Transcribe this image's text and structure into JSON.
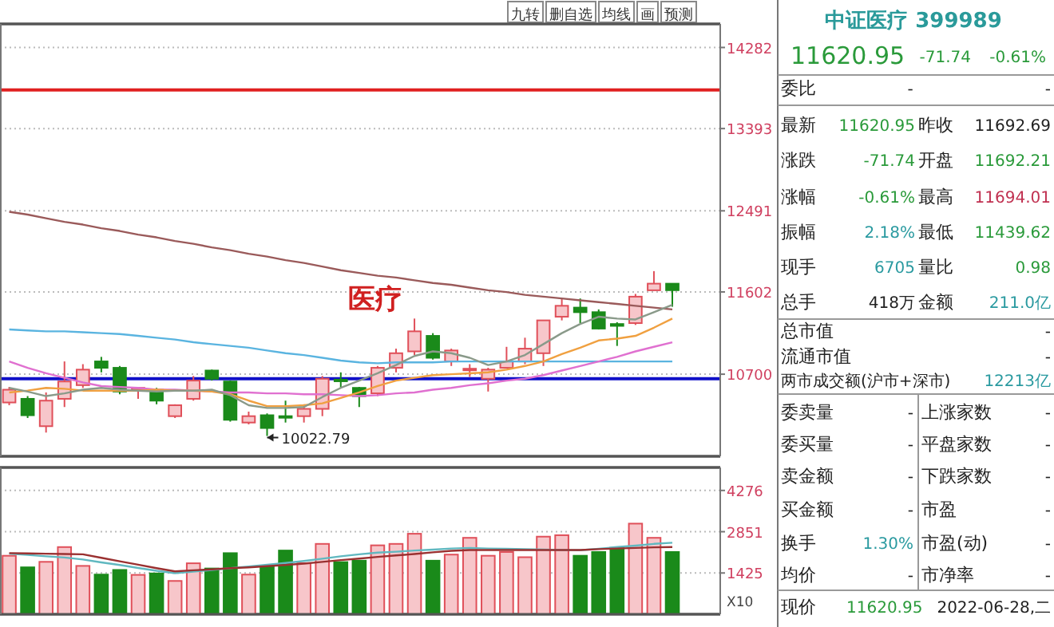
{
  "chart_data": [
    {
      "type": "candlestick",
      "categories": [
        null,
        null,
        null,
        null,
        null,
        null,
        null,
        null,
        null,
        null,
        null,
        null,
        null,
        null,
        null,
        null,
        null,
        null,
        null,
        null,
        null,
        null,
        null,
        null,
        null,
        null,
        null,
        null,
        null,
        null,
        null,
        null,
        null,
        null,
        null,
        null,
        null
      ],
      "ohlc": [
        [
          10390,
          10560,
          10360,
          10530
        ],
        [
          10430,
          10460,
          10220,
          10250
        ],
        [
          10130,
          10500,
          10060,
          10410
        ],
        [
          10430,
          10840,
          10340,
          10620
        ],
        [
          10580,
          10810,
          10550,
          10750
        ],
        [
          10840,
          10890,
          10720,
          10770
        ],
        [
          10770,
          10790,
          10480,
          10510
        ],
        [
          10530,
          10550,
          10430,
          10550
        ],
        [
          10530,
          10550,
          10370,
          10410
        ],
        [
          10240,
          10370,
          10220,
          10360
        ],
        [
          10430,
          10680,
          10410,
          10630
        ],
        [
          10740,
          10750,
          10630,
          10650
        ],
        [
          10620,
          10630,
          10180,
          10200
        ],
        [
          10170,
          10290,
          10150,
          10240
        ],
        [
          10250,
          10270,
          10022.79,
          10110
        ],
        [
          10240,
          10410,
          10170,
          10230
        ],
        [
          10240,
          10370,
          10170,
          10320
        ],
        [
          10320,
          10680,
          10240,
          10650
        ],
        [
          10640,
          10720,
          10550,
          10630
        ],
        [
          10550,
          10560,
          10340,
          10460
        ],
        [
          10490,
          10790,
          10460,
          10770
        ],
        [
          10770,
          10980,
          10720,
          10930
        ],
        [
          10950,
          11310,
          10910,
          11170
        ],
        [
          11120,
          11150,
          10860,
          10880
        ],
        [
          10840,
          10980,
          10790,
          10960
        ],
        [
          10750,
          10810,
          10670,
          10760
        ],
        [
          10650,
          10770,
          10510,
          10750
        ],
        [
          10770,
          11000,
          10770,
          10840
        ],
        [
          10840,
          11100,
          10810,
          10980
        ],
        [
          10930,
          11290,
          10790,
          11290
        ],
        [
          11330,
          11530,
          11290,
          11450
        ],
        [
          11430,
          11530,
          11260,
          11380
        ],
        [
          11380,
          11410,
          11190,
          11200
        ],
        [
          11250,
          11270,
          11010,
          11230
        ],
        [
          11260,
          11580,
          11240,
          11550
        ],
        [
          11620,
          11830,
          11620,
          11692.69
        ],
        [
          11692.21,
          11694.01,
          11439.62,
          11620.95
        ]
      ],
      "ylim": [
        9800,
        14540
      ],
      "yticks": [
        10700,
        11602,
        12491,
        13393,
        14282
      ],
      "tick_labels": "y",
      "grid": "y",
      "ref_lines": [
        {
          "axis": "y",
          "value": 13816,
          "color": "#e02020"
        },
        {
          "axis": "y",
          "value": 10650,
          "color": "#1010c8"
        }
      ],
      "annotations": [
        "医疗",
        "10022.79",
        "九转",
        "删自选",
        "均线",
        "画",
        "预测"
      ]
    },
    {
      "type": "line",
      "categories": [
        null,
        null,
        null,
        null,
        null,
        null,
        null,
        null,
        null,
        null,
        null,
        null,
        null,
        null,
        null,
        null,
        null,
        null,
        null,
        null,
        null,
        null,
        null,
        null,
        null,
        null,
        null,
        null,
        null,
        null,
        null,
        null,
        null,
        null,
        null,
        null,
        null
      ],
      "series": [
        {
          "color": "#9a5a5a",
          "values": [
            12480,
            12450,
            12410,
            12370,
            12340,
            12300,
            12270,
            12230,
            12200,
            12160,
            12130,
            12090,
            12060,
            12020,
            11990,
            11950,
            11920,
            11880,
            11840,
            11810,
            11780,
            11760,
            11730,
            11700,
            11680,
            11650,
            11620,
            11600,
            11570,
            11550,
            11530,
            11510,
            11490,
            11470,
            11450,
            11430,
            11410
          ]
        },
        {
          "color": "#5ab4e0",
          "values": [
            11190,
            11180,
            11170,
            11170,
            11160,
            11150,
            11140,
            11120,
            11100,
            11080,
            11050,
            11030,
            11010,
            10990,
            10960,
            10930,
            10910,
            10880,
            10850,
            10830,
            10820,
            10830,
            10830,
            10830,
            10840,
            10840,
            10840,
            10840,
            10840,
            10840,
            10840,
            10840,
            10840,
            10840,
            10840,
            10840,
            10840
          ]
        },
        {
          "color": "#e070d0",
          "values": [
            10840,
            10770,
            10710,
            10660,
            10610,
            10570,
            10560,
            10550,
            10530,
            10530,
            10520,
            10510,
            10500,
            10500,
            10490,
            10490,
            10480,
            10480,
            10470,
            10460,
            10470,
            10490,
            10500,
            10530,
            10550,
            10580,
            10600,
            10630,
            10650,
            10690,
            10740,
            10790,
            10840,
            10890,
            10950,
            11000,
            11050
          ]
        },
        {
          "color": "#f0a040",
          "values": [
            10500,
            10520,
            10550,
            10540,
            10520,
            10520,
            10520,
            10520,
            10530,
            10520,
            10520,
            10510,
            10480,
            10410,
            10350,
            10350,
            10360,
            10380,
            10440,
            10500,
            10570,
            10630,
            10660,
            10690,
            10700,
            10710,
            10720,
            10750,
            10790,
            10840,
            10920,
            10990,
            11070,
            11090,
            11120,
            11210,
            11310
          ]
        },
        {
          "color": "#8a9a8a",
          "values": [
            10550,
            10510,
            10460,
            10490,
            10530,
            10550,
            10530,
            10520,
            10510,
            10520,
            10520,
            10530,
            10470,
            10360,
            10330,
            10330,
            10340,
            10450,
            10550,
            10630,
            10710,
            10800,
            10900,
            10950,
            10930,
            10880,
            10800,
            10840,
            10910,
            11030,
            11150,
            11250,
            11330,
            11310,
            11300,
            11380,
            11460
          ]
        }
      ],
      "ylim": [
        9800,
        14540
      ],
      "tick_labels": false
    },
    {
      "type": "bar",
      "categories": [
        null,
        null,
        null,
        null,
        null,
        null,
        null,
        null,
        null,
        null,
        null,
        null,
        null,
        null,
        null,
        null,
        null,
        null,
        null,
        null,
        null,
        null,
        null,
        null,
        null,
        null,
        null,
        null,
        null,
        null,
        null,
        null,
        null,
        null,
        null,
        null,
        null
      ],
      "values": [
        2020,
        1620,
        1810,
        2320,
        1670,
        1370,
        1530,
        1360,
        1410,
        1150,
        1760,
        1580,
        2110,
        1370,
        1670,
        2200,
        1760,
        2430,
        1800,
        1850,
        2380,
        2430,
        2780,
        1850,
        2060,
        2640,
        2020,
        2150,
        1970,
        2680,
        2730,
        2020,
        2150,
        2290,
        3130,
        2640,
        2150
      ],
      "colors": [
        "#e0505a",
        "#1a8a1a",
        "#e0505a",
        "#e0505a",
        "#e0505a",
        "#1a8a1a",
        "#1a8a1a",
        "#e0505a",
        "#1a8a1a",
        "#e0505a",
        "#e0505a",
        "#1a8a1a",
        "#1a8a1a",
        "#e0505a",
        "#1a8a1a",
        "#1a8a1a",
        "#e0505a",
        "#e0505a",
        "#1a8a1a",
        "#1a8a1a",
        "#e0505a",
        "#e0505a",
        "#e0505a",
        "#1a8a1a",
        "#e0505a",
        "#e0505a",
        "#e0505a",
        "#e0505a",
        "#e0505a",
        "#e0505a",
        "#e0505a",
        "#1a8a1a",
        "#1a8a1a",
        "#1a8a1a",
        "#e0505a",
        "#e0505a",
        "#1a8a1a"
      ],
      "ylim": [
        0,
        5070
      ],
      "yticks": [
        1425,
        2851,
        4276
      ],
      "tick_labels": "y",
      "grid": "y",
      "annotations": [
        "X10"
      ]
    },
    {
      "type": "line",
      "categories": [
        null,
        null,
        null,
        null,
        null,
        null,
        null,
        null,
        null,
        null,
        null,
        null,
        null,
        null,
        null,
        null,
        null,
        null,
        null,
        null,
        null,
        null,
        null,
        null,
        null,
        null,
        null,
        null,
        null,
        null,
        null,
        null,
        null,
        null,
        null,
        null,
        null
      ],
      "series": [
        {
          "color": "#60b8c0",
          "values": [
            2090,
            2050,
            2000,
            1960,
            1890,
            1790,
            1700,
            1600,
            1500,
            1420,
            1470,
            1530,
            1590,
            1650,
            1710,
            1770,
            1840,
            1920,
            2000,
            2070,
            2130,
            2160,
            2200,
            2230,
            2270,
            2290,
            2270,
            2260,
            2250,
            2230,
            2220,
            2210,
            2260,
            2320,
            2370,
            2430,
            2470
          ]
        },
        {
          "color": "#9a3030",
          "values": [
            2110,
            2100,
            2090,
            2080,
            2070,
            1950,
            1830,
            1710,
            1590,
            1480,
            1520,
            1550,
            1590,
            1620,
            1660,
            1700,
            1750,
            1810,
            1870,
            1920,
            1980,
            2030,
            2080,
            2140,
            2190,
            2220,
            2220,
            2220,
            2220,
            2220,
            2220,
            2220,
            2250,
            2270,
            2290,
            2310,
            2320
          ]
        }
      ],
      "ylim": [
        0,
        5070
      ],
      "tick_labels": false
    },
    {
      "type": "other",
      "title": "中证医疗 399989",
      "annotations": [
        "11620.95",
        "-71.74",
        "-0.61%",
        "委比",
        "-",
        "-",
        "最新",
        "11620.95",
        "昨收",
        "11692.69",
        "涨跌",
        "-71.74",
        "开盘",
        "11692.21",
        "涨幅",
        "-0.61%",
        "最高",
        "11694.01",
        "振幅",
        "2.18%",
        "最低",
        "11439.62",
        "现手",
        "6705",
        "量比",
        "0.98",
        "总手",
        "418万",
        "金额",
        "211.0亿",
        "总市值",
        "-",
        "流通市值",
        "-",
        "两市成交额(沪市+深市)",
        "12213亿",
        "委卖量",
        "-",
        "上涨家数",
        "-",
        "委买量",
        "-",
        "平盘家数",
        "-",
        "卖金额",
        "-",
        "下跌家数",
        "-",
        "买金额",
        "-",
        "市盈",
        "-",
        "换手",
        "1.30%",
        "市盈(动)",
        "-",
        "均价",
        "-",
        "市净率",
        "-",
        "现价",
        "11620.95",
        "2022-06-28,二"
      ]
    }
  ]
}
